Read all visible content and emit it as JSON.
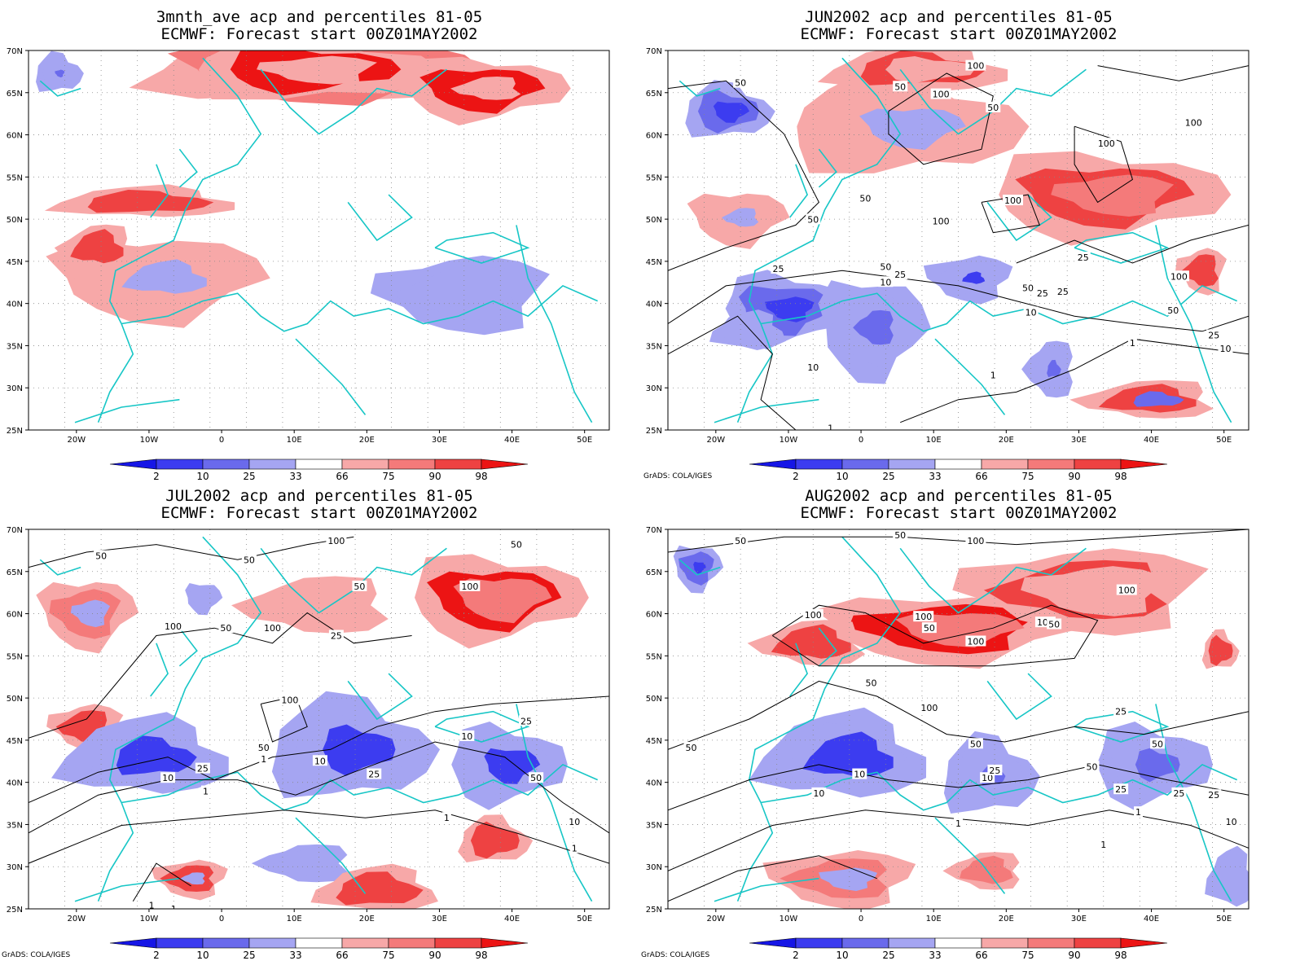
{
  "credit": "GrADS: COLA/IGES",
  "colorbar": {
    "labels": [
      "2",
      "10",
      "25",
      "33",
      "66",
      "75",
      "90",
      "98"
    ],
    "colors": [
      "#1616e6",
      "#3c3cf0",
      "#6a6aec",
      "#a5a5f2",
      "#ffffff",
      "#f7a8a8",
      "#f47a7a",
      "#ee4242",
      "#ec1414"
    ]
  },
  "axes": {
    "lon_labels": [
      "20W",
      "10W",
      "0",
      "10E",
      "20E",
      "30E",
      "40E",
      "50E"
    ],
    "lat_labels": [
      "70N",
      "65N",
      "60N",
      "55N",
      "50N",
      "45N",
      "40N",
      "35N",
      "30N",
      "25N"
    ]
  },
  "panels": [
    {
      "id": "p1",
      "title1": "3mnth_ave acp and percentiles 81-05",
      "title2": "ECMWF: Forecast start 00Z01MAY2002",
      "show_credit": false,
      "contour_labels": []
    },
    {
      "id": "p2",
      "title1": "JUN2002 acp and percentiles 81-05",
      "title2": "ECMWF: Forecast start 00Z01MAY2002",
      "show_credit": true,
      "contour_labels": [
        "50",
        "50",
        "100",
        "50",
        "100",
        "100",
        "100",
        "100",
        "50",
        "50",
        "100",
        "25",
        "25",
        "50",
        "10",
        "25",
        "50",
        "25",
        "25",
        "100",
        "50",
        "10",
        "25",
        "10",
        "10",
        "1",
        "1",
        "1"
      ]
    },
    {
      "id": "p3",
      "title1": "JUL2002 acp and percentiles 81-05",
      "title2": "ECMWF: Forecast start 00Z01MAY2002",
      "show_credit": true,
      "contour_labels": [
        "50",
        "50",
        "100",
        "50",
        "100",
        "100",
        "50",
        "100",
        "25",
        "100",
        "50",
        "50",
        "25",
        "10",
        "25",
        "1",
        "10",
        "25",
        "10",
        "50",
        "1",
        "1",
        "10",
        "1",
        "1",
        "1"
      ]
    },
    {
      "id": "p4",
      "title1": "AUG2002 acp and percentiles 81-05",
      "title2": "ECMWF: Forecast start 00Z01MAY2002",
      "show_credit": true,
      "contour_labels": [
        "50",
        "50",
        "100",
        "100",
        "100",
        "100",
        "100",
        "50",
        "100",
        "50",
        "50",
        "100",
        "25",
        "50",
        "50",
        "50",
        "25",
        "10",
        "25",
        "10",
        "50",
        "10",
        "25",
        "25",
        "10",
        "1",
        "1",
        "1"
      ]
    }
  ]
}
